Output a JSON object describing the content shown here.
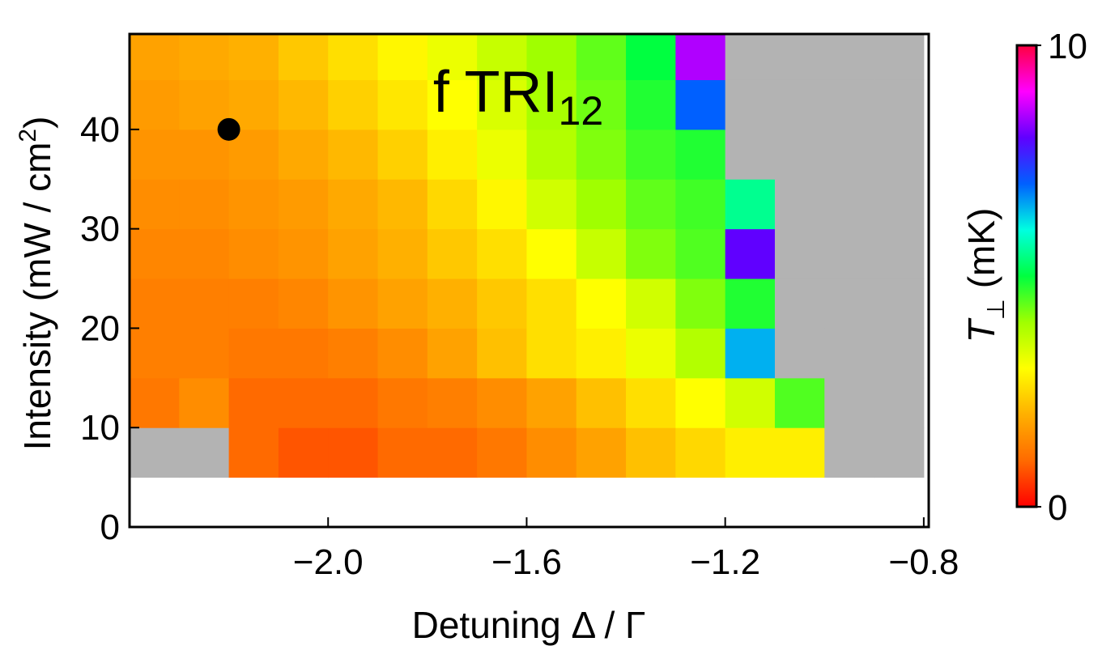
{
  "chart_data": {
    "type": "heatmap",
    "title": {
      "text": "f TRI",
      "subscript": "12"
    },
    "x_label": "Detuning Δ / Γ",
    "y_label": {
      "text": "Intensity (mW / cm",
      "superscript": "2",
      "suffix": ")"
    },
    "colorbar_label": {
      "text": "T",
      "subscript": "⊥",
      "suffix": " (mK)"
    },
    "xlim": [
      -2.4,
      -0.79
    ],
    "ylim": [
      0,
      49.6
    ],
    "xticks": [
      {
        "value": -2.0,
        "label": "−2.0"
      },
      {
        "value": -1.6,
        "label": "−1.6"
      },
      {
        "value": -1.2,
        "label": "−1.2"
      },
      {
        "value": -0.8,
        "label": "−0.8"
      }
    ],
    "yticks": [
      0,
      10,
      20,
      30,
      40
    ],
    "x": [
      -2.35,
      -2.25,
      -2.15,
      -2.05,
      -1.95,
      -1.85,
      -1.75,
      -1.65,
      -1.55,
      -1.45,
      -1.35,
      -1.25,
      -1.15,
      -1.05,
      -0.95,
      -0.85
    ],
    "y": [
      7.5,
      12.5,
      17.5,
      22.5,
      27.5,
      32.5,
      37.5,
      42.5,
      47.5
    ],
    "cell_size": [
      0.1,
      5
    ],
    "z": [
      [
        null,
        null,
        1.0,
        0.8,
        0.8,
        1.0,
        1.0,
        1.2,
        1.5,
        1.8,
        2.2,
        2.5,
        2.8,
        2.8,
        null,
        null
      ],
      [
        1.2,
        1.5,
        1.0,
        1.0,
        1.0,
        1.2,
        1.3,
        1.5,
        1.8,
        2.2,
        2.6,
        3.0,
        3.5,
        4.5,
        null,
        null
      ],
      [
        1.3,
        1.3,
        1.2,
        1.2,
        1.3,
        1.5,
        1.8,
        2.2,
        2.6,
        2.8,
        3.2,
        3.8,
        6.5,
        null,
        null,
        null
      ],
      [
        1.3,
        1.3,
        1.3,
        1.4,
        1.6,
        1.8,
        2.0,
        2.3,
        2.6,
        3.0,
        3.5,
        4.2,
        4.8,
        null,
        null,
        null
      ],
      [
        1.4,
        1.4,
        1.5,
        1.6,
        1.8,
        2.0,
        2.3,
        2.6,
        3.0,
        3.6,
        4.2,
        4.5,
        8.0,
        null,
        null,
        null
      ],
      [
        1.5,
        1.5,
        1.6,
        1.7,
        1.9,
        2.1,
        2.5,
        2.9,
        3.5,
        4.0,
        4.4,
        4.6,
        5.5,
        null,
        null,
        null
      ],
      [
        1.6,
        1.6,
        1.7,
        1.9,
        2.1,
        2.4,
        2.8,
        3.2,
        3.8,
        4.2,
        4.6,
        4.8,
        null,
        null,
        null,
        null
      ],
      [
        1.7,
        1.8,
        1.9,
        2.1,
        2.4,
        2.7,
        3.0,
        3.4,
        3.9,
        4.3,
        4.8,
        7.0,
        null,
        null,
        null,
        null
      ],
      [
        1.8,
        1.9,
        2.0,
        2.3,
        2.6,
        2.9,
        3.2,
        3.6,
        4.0,
        4.4,
        5.0,
        8.5,
        null,
        null,
        null,
        null
      ]
    ],
    "missing_color": "#b3b3b3",
    "zlim": [
      0,
      10
    ],
    "zticks": [
      0,
      10
    ],
    "colorscale": [
      "#ff0000",
      "#ff6a00",
      "#ffb000",
      "#ffff00",
      "#a0ff00",
      "#00ff40",
      "#00ffe0",
      "#0060ff",
      "#6000ff",
      "#ff00ff",
      "#ff0040"
    ],
    "point": {
      "x": -2.2,
      "y": 40,
      "color": "#000000"
    }
  }
}
